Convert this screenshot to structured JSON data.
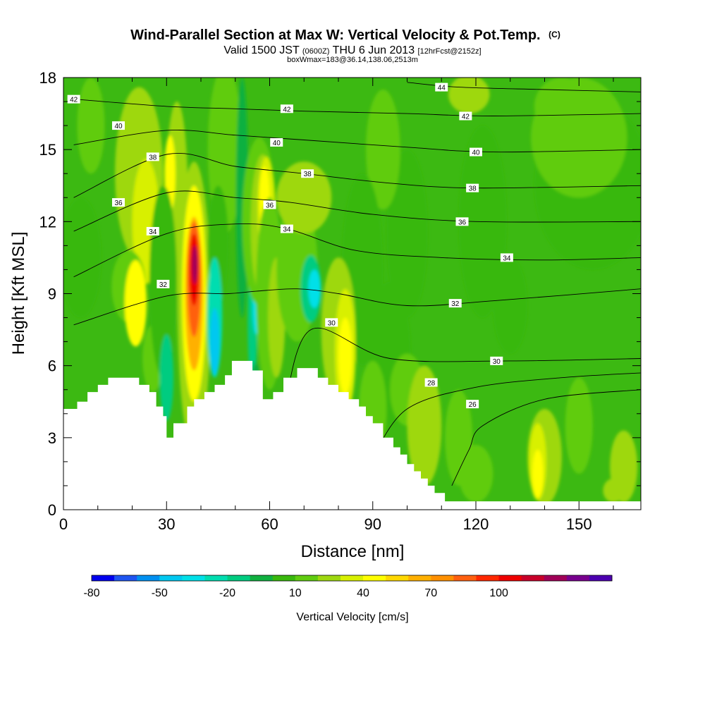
{
  "title": {
    "main": "Wind-Parallel Section at Max W: Vertical Velocity & Pot.Temp.",
    "copyright": "(C)",
    "valid_a": "Valid 1500 JST",
    "valid_b": "(0600Z)",
    "valid_c": "THU 6 Jun 2013",
    "valid_d": "[12hrFcst@2152z]",
    "box": "boxWmax=183@36.14,138.06,2513m"
  },
  "chart_data": {
    "type": "heatmap",
    "xlabel": "Distance [nm]",
    "ylabel": "Height [Kft MSL]",
    "xlim": [
      0,
      168
    ],
    "ylim": [
      0,
      18
    ],
    "x_ticks": [
      0,
      30,
      60,
      90,
      120,
      150
    ],
    "y_ticks": [
      0,
      3,
      6,
      9,
      12,
      15,
      18
    ],
    "colorbar": {
      "label": "Vertical Velocity [cm/s]",
      "min": -80,
      "step": 10,
      "colors": [
        "#0000ee",
        "#1f55f0",
        "#0090f0",
        "#00c8f0",
        "#00e0e8",
        "#00ddb0",
        "#00cc80",
        "#10b040",
        "#39b80d",
        "#60cc10",
        "#9ed810",
        "#d8f000",
        "#ffff00",
        "#ffd800",
        "#ffb000",
        "#ff9000",
        "#ff6010",
        "#ff2800",
        "#ee0000",
        "#c8002a",
        "#a00058",
        "#78008e",
        "#4c00b0"
      ],
      "tick_labels": [
        "-80",
        "-50",
        "-20",
        "10",
        "40",
        "70",
        "100"
      ],
      "tick_values": [
        -80,
        -50,
        -20,
        10,
        40,
        70,
        100
      ]
    },
    "terrain": [
      [
        0,
        4.2
      ],
      [
        4,
        4.2
      ],
      [
        4,
        4.5
      ],
      [
        7,
        4.5
      ],
      [
        7,
        4.9
      ],
      [
        10,
        4.9
      ],
      [
        10,
        5.2
      ],
      [
        13,
        5.2
      ],
      [
        13,
        5.5
      ],
      [
        22,
        5.5
      ],
      [
        22,
        5.2
      ],
      [
        25,
        5.2
      ],
      [
        25,
        4.9
      ],
      [
        27,
        4.9
      ],
      [
        27,
        4.3
      ],
      [
        29,
        4.3
      ],
      [
        29,
        3.9
      ],
      [
        30,
        3.9
      ],
      [
        30,
        3.0
      ],
      [
        32,
        3.0
      ],
      [
        32,
        3.6
      ],
      [
        36,
        3.6
      ],
      [
        36,
        4.3
      ],
      [
        38,
        4.3
      ],
      [
        38,
        4.6
      ],
      [
        41,
        4.6
      ],
      [
        41,
        4.9
      ],
      [
        44,
        4.9
      ],
      [
        44,
        5.2
      ],
      [
        47,
        5.2
      ],
      [
        47,
        5.6
      ],
      [
        49,
        5.6
      ],
      [
        49,
        6.2
      ],
      [
        55,
        6.2
      ],
      [
        55,
        5.8
      ],
      [
        58,
        5.8
      ],
      [
        58,
        4.6
      ],
      [
        61,
        4.6
      ],
      [
        61,
        4.9
      ],
      [
        64,
        4.9
      ],
      [
        64,
        5.5
      ],
      [
        68,
        5.5
      ],
      [
        68,
        5.9
      ],
      [
        74,
        5.9
      ],
      [
        74,
        5.5
      ],
      [
        77,
        5.5
      ],
      [
        77,
        5.2
      ],
      [
        80,
        5.2
      ],
      [
        80,
        4.9
      ],
      [
        83,
        4.9
      ],
      [
        83,
        4.6
      ],
      [
        86,
        4.6
      ],
      [
        86,
        4.3
      ],
      [
        88,
        4.3
      ],
      [
        88,
        3.9
      ],
      [
        90,
        3.9
      ],
      [
        90,
        3.6
      ],
      [
        93,
        3.6
      ],
      [
        93,
        3.0
      ],
      [
        96,
        3.0
      ],
      [
        96,
        2.6
      ],
      [
        98,
        2.6
      ],
      [
        98,
        2.3
      ],
      [
        100,
        2.3
      ],
      [
        100,
        1.9
      ],
      [
        102,
        1.9
      ],
      [
        102,
        1.6
      ],
      [
        104,
        1.6
      ],
      [
        104,
        1.3
      ],
      [
        106,
        1.3
      ],
      [
        106,
        1.0
      ],
      [
        108,
        1.0
      ],
      [
        108,
        0.7
      ],
      [
        111,
        0.7
      ],
      [
        111,
        0.35
      ],
      [
        168,
        0.35
      ]
    ],
    "isentropes": [
      {
        "label": "26",
        "pts": [
          [
            113,
            1.0
          ],
          [
            118,
            2.5
          ],
          [
            122,
            3.5
          ],
          [
            140,
            4.6
          ],
          [
            168,
            5.0
          ]
        ],
        "labels": [
          [
            119,
            4.4
          ]
        ]
      },
      {
        "label": "28",
        "pts": [
          [
            90,
            2.2
          ],
          [
            100,
            4.2
          ],
          [
            120,
            5.1
          ],
          [
            145,
            5.5
          ],
          [
            168,
            5.7
          ]
        ],
        "labels": [
          [
            107,
            5.3
          ]
        ]
      },
      {
        "label": "30",
        "pts": [
          [
            64,
            4.0
          ],
          [
            72,
            7.5
          ],
          [
            95,
            6.3
          ],
          [
            130,
            6.2
          ],
          [
            168,
            6.3
          ]
        ],
        "labels": [
          [
            78,
            7.8
          ],
          [
            126,
            6.2
          ]
        ]
      },
      {
        "label": "32",
        "pts": [
          [
            3,
            7.7
          ],
          [
            30,
            8.9
          ],
          [
            48,
            9.0
          ],
          [
            56,
            9.1
          ],
          [
            68,
            9.2
          ],
          [
            80,
            9.0
          ],
          [
            100,
            8.5
          ],
          [
            125,
            8.7
          ],
          [
            168,
            9.2
          ]
        ],
        "labels": [
          [
            29,
            9.4
          ],
          [
            114,
            8.6
          ]
        ]
      },
      {
        "label": "34",
        "pts": [
          [
            3,
            9.7
          ],
          [
            30,
            11.5
          ],
          [
            50,
            11.9
          ],
          [
            65,
            11.7
          ],
          [
            85,
            10.8
          ],
          [
            110,
            10.5
          ],
          [
            140,
            10.4
          ],
          [
            168,
            10.5
          ]
        ],
        "labels": [
          [
            26,
            11.6
          ],
          [
            129,
            10.5
          ],
          [
            65,
            11.7
          ]
        ]
      },
      {
        "label": "36",
        "pts": [
          [
            3,
            11.6
          ],
          [
            30,
            13.2
          ],
          [
            50,
            13.0
          ],
          [
            66,
            12.8
          ],
          [
            90,
            12.3
          ],
          [
            120,
            12.0
          ],
          [
            168,
            12.0
          ]
        ],
        "labels": [
          [
            16,
            12.8
          ],
          [
            60,
            12.7
          ],
          [
            116,
            12.0
          ]
        ]
      },
      {
        "label": "38",
        "pts": [
          [
            3,
            13.0
          ],
          [
            30,
            14.8
          ],
          [
            50,
            14.3
          ],
          [
            70,
            14.0
          ],
          [
            95,
            13.6
          ],
          [
            120,
            13.4
          ],
          [
            168,
            13.5
          ]
        ],
        "labels": [
          [
            26,
            14.7
          ],
          [
            71,
            14.0
          ],
          [
            119,
            13.4
          ]
        ]
      },
      {
        "label": "40",
        "pts": [
          [
            3,
            15.2
          ],
          [
            30,
            15.8
          ],
          [
            50,
            15.6
          ],
          [
            70,
            15.4
          ],
          [
            100,
            15.1
          ],
          [
            125,
            14.9
          ],
          [
            168,
            15.0
          ]
        ],
        "labels": [
          [
            16,
            16.0
          ],
          [
            62,
            15.3
          ],
          [
            120,
            14.9
          ]
        ]
      },
      {
        "label": "42",
        "pts": [
          [
            3,
            17.1
          ],
          [
            30,
            16.8
          ],
          [
            50,
            16.7
          ],
          [
            70,
            16.6
          ],
          [
            100,
            16.5
          ],
          [
            125,
            16.4
          ],
          [
            168,
            16.5
          ]
        ],
        "labels": [
          [
            3,
            17.1
          ],
          [
            65,
            16.7
          ],
          [
            117,
            16.4
          ]
        ]
      },
      {
        "label": "44",
        "pts": [
          [
            100,
            17.8
          ],
          [
            115,
            17.6
          ],
          [
            140,
            17.5
          ],
          [
            168,
            17.4
          ]
        ],
        "labels": [
          [
            110,
            17.6
          ]
        ]
      }
    ]
  }
}
